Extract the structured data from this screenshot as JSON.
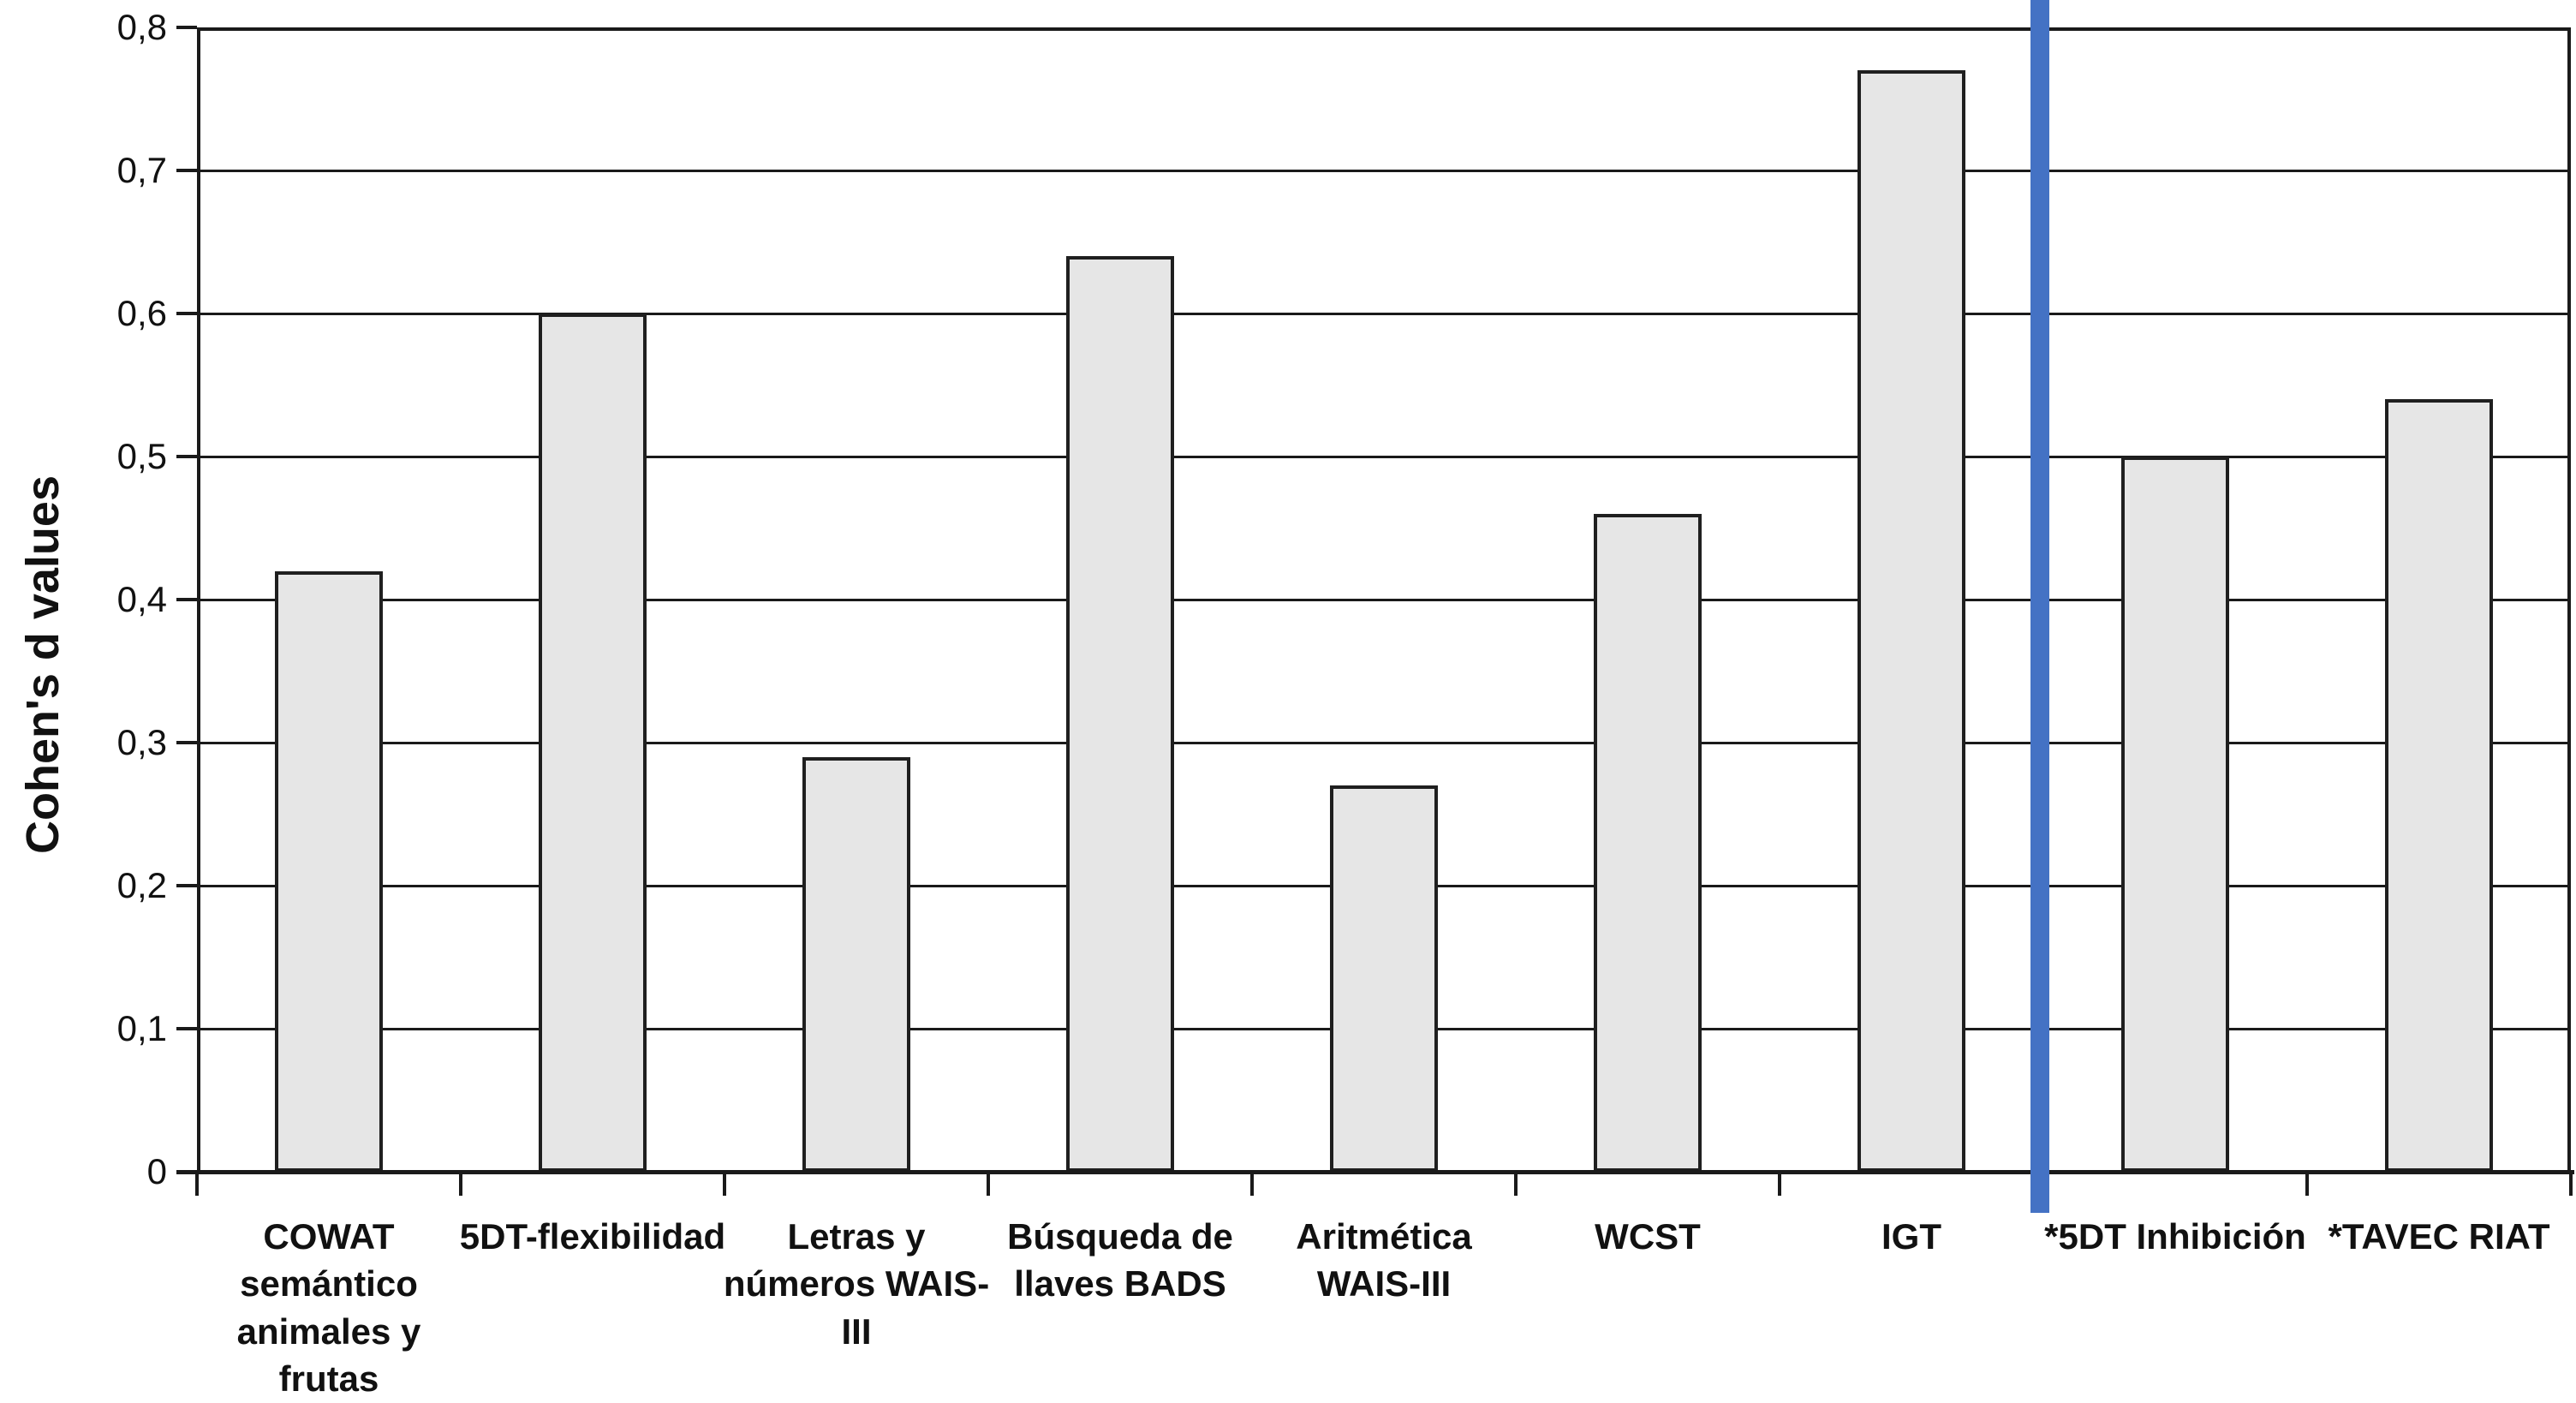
{
  "chart_data": {
    "type": "bar",
    "title": "",
    "xlabel": "",
    "ylabel": "Cohen's d values",
    "ylim": [
      0,
      0.8
    ],
    "ytick_interval": 0.1,
    "ytick_labels": [
      "0",
      "0,1",
      "0,2",
      "0,3",
      "0,4",
      "0,5",
      "0,6",
      "0,7",
      "0,8"
    ],
    "grid": true,
    "legend": "none",
    "decimal_separator": ",",
    "categories": [
      "COWAT semántico animales y frutas",
      "5DT-flexibilidad",
      "Letras y números WAIS-III",
      "Búsqueda de llaves BADS",
      "Aritmética WAIS-III",
      "WCST",
      "IGT",
      "*5DT Inhibición",
      "*TAVEC RIAT"
    ],
    "category_display": [
      "COWAT\nsemántico\nanimales y\nfrutas",
      "5DT-flexibilidad",
      "Letras y\nnúmeros WAIS-\nIII",
      "Búsqueda de\nllaves BADS",
      "Aritmética\nWAIS-III",
      "WCST",
      "IGT",
      "*5DT Inhibición",
      "*TAVEC RIAT"
    ],
    "values": [
      0.42,
      0.6,
      0.29,
      0.64,
      0.27,
      0.46,
      0.77,
      0.5,
      0.54
    ],
    "separator": {
      "between": [
        "IGT",
        "*5DT Inhibición"
      ],
      "color": "#4472C4"
    },
    "colors": {
      "bar_fill": "#e6e6e6",
      "bar_border": "#1f1f1f",
      "axis_line": "#1a1a1a",
      "text": "#111111",
      "background": "#ffffff"
    }
  }
}
